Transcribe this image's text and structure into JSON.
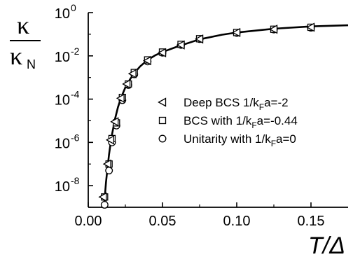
{
  "chart_data": {
    "type": "scatter",
    "title": "",
    "xlabel": "T/Δ",
    "ylabel": {
      "numerator": "κ",
      "denominator": "κ",
      "denominator_sub": "N"
    },
    "xlim": [
      0.0,
      0.175
    ],
    "ylim": [
      1e-09,
      1.0
    ],
    "yscale": "log",
    "grid": false,
    "legend_position": "center-right",
    "x_ticks": [
      "0.00",
      "0.05",
      "0.10",
      "0.15"
    ],
    "x_tick_values": [
      0.0,
      0.05,
      0.1,
      0.15
    ],
    "y_ticks": [
      {
        "base": "10",
        "exp": "0",
        "value": 1
      },
      {
        "base": "10",
        "exp": "-2",
        "value": 0.01
      },
      {
        "base": "10",
        "exp": "-4",
        "value": 0.0001
      },
      {
        "base": "10",
        "exp": "-6",
        "value": 1e-06
      },
      {
        "base": "10",
        "exp": "-8",
        "value": 1e-08
      }
    ],
    "series": [
      {
        "name": "Deep BCS 1/kFa=-2",
        "label": {
          "pre": "Deep BCS 1/k",
          "sub": "F",
          "post": "a=-2"
        },
        "marker": "triangle-left",
        "x": [
          0.01,
          0.013,
          0.015,
          0.018,
          0.022,
          0.026,
          0.03,
          0.04,
          0.05,
          0.0625,
          0.075,
          0.1,
          0.125,
          0.15
        ],
        "y": [
          3e-09,
          1e-07,
          1.3e-06,
          9e-06,
          0.00011,
          0.0005,
          0.0015,
          0.006,
          0.014,
          0.032,
          0.06,
          0.12,
          0.17,
          0.21
        ]
      },
      {
        "name": "BCS with 1/kFa=-0.44",
        "label": {
          "pre": "BCS with 1/k",
          "sub": "F",
          "post": "a=-0.44"
        },
        "marker": "square",
        "x": [
          0.011,
          0.014,
          0.016,
          0.019,
          0.023,
          0.027,
          0.031,
          0.04,
          0.05,
          0.0625,
          0.075,
          0.1,
          0.125,
          0.15
        ],
        "y": [
          3e-09,
          1e-07,
          1.5e-06,
          8e-06,
          0.00012,
          0.0005,
          0.0017,
          0.0065,
          0.015,
          0.034,
          0.062,
          0.12,
          0.17,
          0.21
        ]
      },
      {
        "name": "Unitarity with 1/kFa=0",
        "label": {
          "pre": "Unitarity with 1/k",
          "sub": "F",
          "post": "a=0"
        },
        "marker": "circle",
        "x": [
          0.011,
          0.014,
          0.016,
          0.019,
          0.023,
          0.027,
          0.031,
          0.04,
          0.05,
          0.0625,
          0.075,
          0.1,
          0.125,
          0.15
        ],
        "y": [
          1.3e-09,
          5e-08,
          1e-06,
          6e-06,
          9e-05,
          0.00045,
          0.0014,
          0.0055,
          0.014,
          0.032,
          0.06,
          0.115,
          0.165,
          0.2
        ]
      }
    ],
    "fit_curve": {
      "x": [
        0.0105,
        0.011,
        0.012,
        0.013,
        0.014,
        0.015,
        0.016,
        0.018,
        0.02,
        0.022,
        0.025,
        0.028,
        0.031,
        0.035,
        0.04,
        0.045,
        0.05,
        0.06,
        0.075,
        0.09,
        0.1,
        0.125,
        0.15,
        0.175
      ],
      "y": [
        1e-09,
        2.2e-09,
        1.5e-08,
        7e-08,
        2.8e-07,
        8.5e-07,
        2.3e-06,
        1.2e-05,
        4.2e-05,
        0.00011,
        0.00035,
        0.0008,
        0.0016,
        0.0033,
        0.0065,
        0.0105,
        0.015,
        0.027,
        0.058,
        0.095,
        0.12,
        0.18,
        0.23,
        0.26
      ]
    }
  }
}
